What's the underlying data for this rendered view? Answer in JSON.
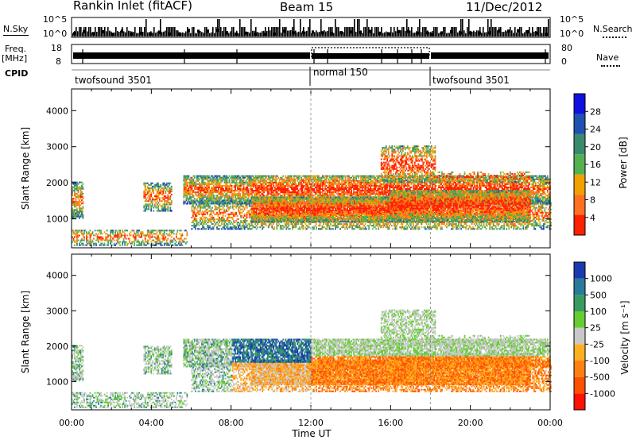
{
  "header": {
    "station": "Rankin Inlet (fitACF)",
    "beam": "Beam 15",
    "date": "11/Dec/2012"
  },
  "top_panels": {
    "nsky_label": "N.Sky",
    "nsearch_label": "N.Search",
    "nsky_ticks": [
      "10^5",
      "10^0"
    ],
    "freq_label_1": "Freq.",
    "freq_label_2": "[MHz]",
    "freq_ticks": [
      "18",
      "8"
    ],
    "nave_ticks": [
      "80",
      "0"
    ],
    "nave_label": "Nave",
    "cpid_label": "CPID",
    "cpid_segments": [
      {
        "label": "twofsound 3501",
        "start_h": 0
      },
      {
        "label": "normal 150",
        "start_h": 12
      },
      {
        "label": "twofsound 3501",
        "start_h": 18
      }
    ]
  },
  "chart_data": [
    {
      "type": "heatmap",
      "title": "",
      "xlabel": "Time UT",
      "ylabel": "Slant Range [km]",
      "x_ticks": [
        "00:00",
        "04:00",
        "08:00",
        "12:00",
        "16:00",
        "20:00",
        "00:00"
      ],
      "y_ticks": [
        "1000",
        "2000",
        "3000",
        "4000"
      ],
      "ylim": [
        200,
        4600
      ],
      "colorbar_label": "Power [dB]",
      "colorbar_ticks": [
        "4",
        "8",
        "12",
        "16",
        "20",
        "24",
        "28"
      ],
      "colorbar_colors": [
        "#1010e0",
        "#2050b0",
        "#3a8a70",
        "#55b050",
        "#f0a000",
        "#ff7020",
        "#ff2000"
      ]
    },
    {
      "type": "heatmap",
      "title": "",
      "xlabel": "Time UT",
      "ylabel": "Slant Range [km]",
      "x_ticks": [
        "00:00",
        "04:00",
        "08:00",
        "12:00",
        "16:00",
        "20:00",
        "00:00"
      ],
      "y_ticks": [
        "1000",
        "2000",
        "3000",
        "4000"
      ],
      "ylim": [
        200,
        4600
      ],
      "colorbar_label": "Velocity [m s⁻¹]",
      "colorbar_ticks": [
        "1000",
        "500",
        "100",
        "25",
        "-25",
        "-100",
        "-500",
        "-1000"
      ],
      "colorbar_colors": [
        "#1a3ab0",
        "#2a7a9a",
        "#3a9a60",
        "#66cc33",
        "#c8c8c8",
        "#ffb020",
        "#ff8010",
        "#ff5000",
        "#ff1000"
      ]
    }
  ]
}
